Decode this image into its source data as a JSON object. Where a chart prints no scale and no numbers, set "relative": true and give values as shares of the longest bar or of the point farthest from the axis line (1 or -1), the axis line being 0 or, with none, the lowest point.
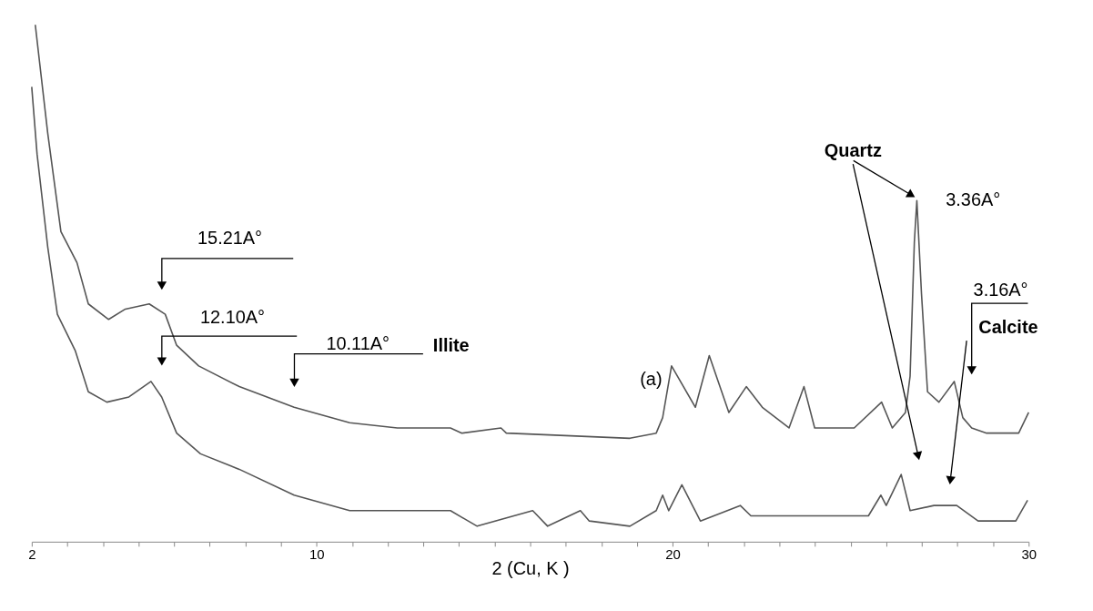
{
  "chart_data": {
    "type": "line",
    "relative": true,
    "xlabel": "2   (Cu, K  )",
    "xlim": [
      2,
      30
    ],
    "xticks": [
      2,
      {
        "value": 3,
        "label": null
      },
      {
        "value": 4,
        "label": null
      },
      {
        "value": 5,
        "label": null
      },
      {
        "value": 6,
        "label": null
      },
      {
        "value": 7,
        "label": null
      },
      {
        "value": 8,
        "label": null
      },
      {
        "value": 9,
        "label": null
      },
      10,
      {
        "value": 11,
        "label": null
      },
      {
        "value": 12,
        "label": null
      },
      {
        "value": 13,
        "label": null
      },
      {
        "value": 14,
        "label": null
      },
      {
        "value": 15,
        "label": null
      },
      {
        "value": 16,
        "label": null
      },
      {
        "value": 17,
        "label": null
      },
      {
        "value": 18,
        "label": null
      },
      {
        "value": 19,
        "label": null
      },
      20,
      {
        "value": 21,
        "label": null
      },
      {
        "value": 22,
        "label": null
      },
      {
        "value": 23,
        "label": null
      },
      {
        "value": 24,
        "label": null
      },
      {
        "value": 25,
        "label": null
      },
      {
        "value": 26,
        "label": null
      },
      {
        "value": 27,
        "label": null
      },
      {
        "value": 28,
        "label": null
      },
      {
        "value": 29,
        "label": null
      },
      30
    ],
    "grid": false,
    "marker": "none",
    "line_style": "solid",
    "series": [
      {
        "color": "#555555",
        "x": [
          2.1,
          2.45,
          2.82,
          3.27,
          3.59,
          4.16,
          4.63,
          5.3,
          5.75,
          6.07,
          6.69,
          7.83,
          9.37,
          10.93,
          12.27,
          13.76,
          14.08,
          15.18,
          15.33,
          18.8,
          19.54,
          19.72,
          19.97,
          20.64,
          21.03,
          21.58,
          22.07,
          22.52,
          23.27,
          23.69,
          23.99,
          25.1,
          25.87,
          26.17,
          26.54,
          26.67,
          26.79,
          26.86,
          26.99,
          27.16,
          27.48,
          27.91,
          28.15,
          28.4,
          28.82,
          29.72,
          30.0
        ],
        "values": [
          1.0,
          0.79,
          0.6,
          0.54,
          0.46,
          0.43,
          0.45,
          0.46,
          0.44,
          0.38,
          0.34,
          0.3,
          0.26,
          0.23,
          0.22,
          0.22,
          0.21,
          0.22,
          0.21,
          0.2,
          0.21,
          0.24,
          0.34,
          0.26,
          0.36,
          0.25,
          0.3,
          0.26,
          0.22,
          0.3,
          0.22,
          0.22,
          0.27,
          0.22,
          0.25,
          0.32,
          0.58,
          0.66,
          0.48,
          0.29,
          0.27,
          0.31,
          0.24,
          0.22,
          0.21,
          0.21,
          0.25
        ]
      },
      {
        "color": "#555555",
        "x": [
          2.0,
          2.15,
          2.45,
          2.72,
          3.22,
          3.59,
          4.11,
          4.73,
          5.35,
          5.65,
          6.07,
          6.74,
          7.83,
          9.37,
          10.93,
          13.76,
          14.51,
          16.07,
          16.49,
          17.41,
          17.66,
          18.8,
          19.54,
          19.72,
          19.89,
          20.26,
          20.78,
          21.9,
          22.2,
          25.5,
          25.85,
          26.0,
          26.42,
          26.67,
          27.34,
          27.71,
          27.98,
          28.58,
          29.64,
          29.97
        ],
        "values": [
          0.88,
          0.75,
          0.57,
          0.44,
          0.37,
          0.29,
          0.27,
          0.28,
          0.31,
          0.28,
          0.21,
          0.17,
          0.14,
          0.09,
          0.06,
          0.06,
          0.03,
          0.06,
          0.03,
          0.06,
          0.04,
          0.03,
          0.06,
          0.09,
          0.06,
          0.11,
          0.04,
          0.07,
          0.05,
          0.05,
          0.09,
          0.07,
          0.13,
          0.06,
          0.07,
          0.07,
          0.07,
          0.04,
          0.04,
          0.08
        ]
      }
    ],
    "annotations": [
      "15.21A°",
      "12.10A°",
      "10.11A°",
      "Illite",
      {
        "text": "(a)",
        "x": 19.7,
        "y": 0.24
      },
      {
        "text": "3.36A°",
        "x": 26.86,
        "y": 0.66
      },
      "Quartz",
      "3.16A°",
      "Calcite"
    ]
  }
}
